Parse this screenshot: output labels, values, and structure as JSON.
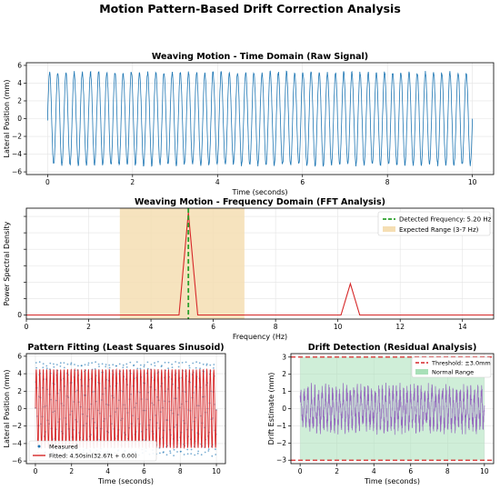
{
  "figure": {
    "suptitle": "Motion Pattern-Based Drift Correction Analysis"
  },
  "chart_data": [
    {
      "id": "time_domain",
      "type": "line",
      "title": "Weaving Motion - Time Domain (Raw Signal)",
      "xlabel": "Time (seconds)",
      "ylabel": "Lateral Position (mm)",
      "xlim": [
        -0.5,
        10.5
      ],
      "ylim": [
        -6.3,
        6.3
      ],
      "xticks": [
        0,
        2,
        4,
        6,
        8,
        10
      ],
      "yticks": [
        -6,
        -4,
        -2,
        0,
        2,
        4,
        6
      ],
      "grid": true,
      "series": [
        {
          "color": "#1f77b4",
          "description_values": {
            "amplitude_mm": 5.2,
            "frequency_hz": 5.2,
            "t_start": 0,
            "t_end": 10,
            "noise_mm": 0.4
          }
        }
      ]
    },
    {
      "id": "fft",
      "type": "line",
      "title": "Weaving Motion - Frequency Domain (FFT Analysis)",
      "xlabel": "Frequency (Hz)",
      "ylabel": "Power Spectral Density",
      "xlim": [
        0,
        15
      ],
      "ylim": [
        -0.05,
        1.3
      ],
      "xticks": [
        0,
        2,
        4,
        6,
        8,
        10,
        12,
        14
      ],
      "yticks": [
        0,
        0.2,
        0.4,
        0.6,
        0.8,
        1.0,
        1.2
      ],
      "ytick_labels": [
        "0",
        "",
        "",
        "",
        "",
        "",
        ""
      ],
      "grid": true,
      "legend_position": "upper right",
      "span": {
        "x0": 3,
        "x1": 7,
        "color": "#f5deb3",
        "label": "Expected Range (3-7 Hz)"
      },
      "vline": {
        "x": 5.2,
        "color": "#2ca02c",
        "label": "Detected Frequency: 5.20 Hz"
      },
      "series": [
        {
          "color": "#d62728",
          "x": [
            0,
            4.9,
            5.2,
            5.5,
            10.1,
            10.4,
            10.7,
            15
          ],
          "y": [
            0.0,
            0.0,
            1.25,
            0.0,
            0.0,
            0.38,
            0.0,
            0.0
          ]
        }
      ]
    },
    {
      "id": "fitting",
      "type": "scatter",
      "title": "Pattern Fitting (Least Squares Sinusoid)",
      "xlabel": "Time (seconds)",
      "ylabel": "Lateral Position (mm)",
      "xlim": [
        -0.5,
        10.5
      ],
      "ylim": [
        -6.3,
        6.3
      ],
      "xticks": [
        0,
        2,
        4,
        6,
        8,
        10
      ],
      "yticks": [
        -6,
        -4,
        -2,
        0,
        2,
        4,
        6
      ],
      "grid": true,
      "legend_position": "lower left",
      "series": [
        {
          "name": "Measured",
          "color": "#1f77b4",
          "description_values": {
            "amplitude_mm": 5.2,
            "frequency_hz": 5.2
          }
        },
        {
          "name": "Fitted: 4.50sin(32.67t + 0.00)",
          "color": "#d62728",
          "amplitude": 4.5,
          "omega": 32.67,
          "phase": 0.0
        }
      ]
    },
    {
      "id": "drift",
      "type": "line",
      "title": "Drift Detection (Residual Analysis)",
      "xlabel": "Time (seconds)",
      "ylabel": "Drift Estimate (mm)",
      "xlim": [
        -0.5,
        10.5
      ],
      "ylim": [
        -3.2,
        3.2
      ],
      "xticks": [
        0,
        2,
        4,
        6,
        8,
        10
      ],
      "yticks": [
        -3,
        -2,
        -1,
        0,
        1,
        2,
        3
      ],
      "grid": true,
      "legend_position": "upper right",
      "threshold": {
        "value": 3.0,
        "color": "#d62728",
        "label": "Threshold: ±3.0mm"
      },
      "band": {
        "y0": -3,
        "y1": 3,
        "color": "#a8e0b8",
        "label": "Normal Range"
      },
      "series": [
        {
          "color": "#9467bd",
          "description_values": {
            "amplitude_mm": 1.3
          }
        }
      ]
    }
  ]
}
